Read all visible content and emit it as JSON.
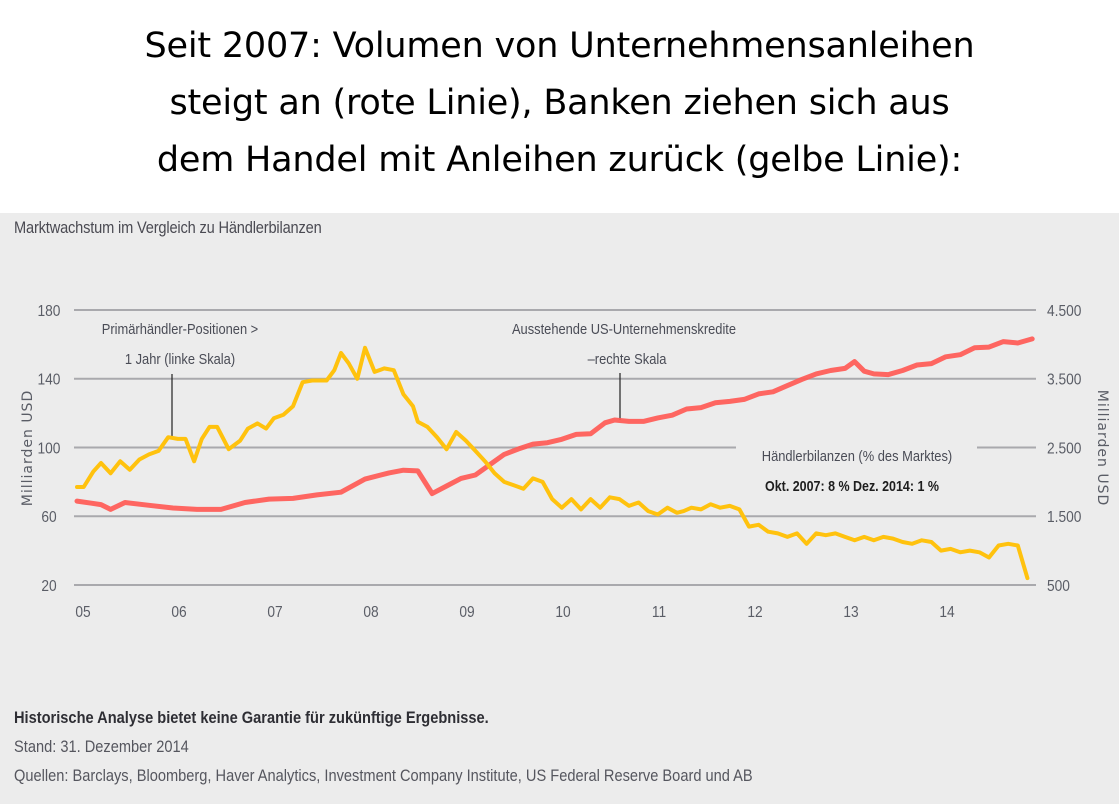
{
  "headline": {
    "lines": [
      "Seit 2007: Volumen von Unternehmensanleihen",
      "steigt an (rote Linie), Banken ziehen sich aus",
      "dem Handel mit Anleihen zurück (gelbe Linie):"
    ]
  },
  "footer": {
    "disclaimer": "Historische Analyse bietet keine Garantie für zukünftige Ergebnisse.",
    "date": "Stand: 31. Dezember 2014",
    "sources": "Quellen: Barclays, Bloomberg, Haver Analytics, Investment Company Institute, US Federal Reserve Board und AB"
  },
  "chart_data": {
    "type": "line",
    "title": "Marktwachstum im Vergleich zu Händlerbilanzen",
    "xlabel": "",
    "ylabel": "Milliarden USD",
    "ylabel_right": "Milliarden USD",
    "xlim": [
      2005,
      2015
    ],
    "ylim": [
      20,
      180
    ],
    "ylim_right": [
      500,
      4500
    ],
    "grid": true,
    "x_ticks": [
      "05",
      "06",
      "07",
      "08",
      "09",
      "10",
      "11",
      "12",
      "13",
      "14"
    ],
    "y_ticks": [
      "180",
      "140",
      "100",
      "60",
      "20"
    ],
    "y_ticks_values": [
      180,
      140,
      100,
      60,
      20
    ],
    "y_ticks_right": [
      "4.500",
      "3.500",
      "2.500",
      "1.500",
      "500"
    ],
    "y_ticks_right_values": [
      4500,
      3500,
      2500,
      1500,
      500
    ],
    "annotations": {
      "yellow_label_line1": "Primärhändler-Positionen >",
      "yellow_label_line2": "1 Jahr (linke Skala)",
      "red_label_line1": "Ausstehende US-Unternehmenskredite",
      "red_label_line2": "–rechte Skala",
      "dealer_label": "Händlerbilanzen (% des Marktes)",
      "dealer_values": "Okt. 2007: 8 % Dez. 2014: 1 %"
    },
    "series": [
      {
        "name": "Primärhändler-Positionen > 1 Jahr (linke Skala)",
        "axis": "left",
        "color": "#FFC20E",
        "x": [
          2005.0,
          2005.07,
          2005.17,
          2005.25,
          2005.35,
          2005.45,
          2005.55,
          2005.65,
          2005.75,
          2005.85,
          2005.95,
          2006.05,
          2006.13,
          2006.22,
          2006.3,
          2006.38,
          2006.46,
          2006.58,
          2006.7,
          2006.78,
          2006.88,
          2006.97,
          2007.05,
          2007.15,
          2007.25,
          2007.35,
          2007.45,
          2007.55,
          2007.6,
          2007.68,
          2007.75,
          2007.83,
          2007.92,
          2008.0,
          2008.1,
          2008.2,
          2008.3,
          2008.4,
          2008.5,
          2008.55,
          2008.65,
          2008.75,
          2008.85,
          2008.95,
          2009.05,
          2009.15,
          2009.25,
          2009.35,
          2009.45,
          2009.55,
          2009.65,
          2009.75,
          2009.85,
          2009.95,
          2010.05,
          2010.15,
          2010.25,
          2010.35,
          2010.45,
          2010.55,
          2010.65,
          2010.75,
          2010.85,
          2010.95,
          2011.05,
          2011.15,
          2011.25,
          2011.32,
          2011.4,
          2011.5,
          2011.6,
          2011.7,
          2011.8,
          2011.9,
          2012.0,
          2012.1,
          2012.2,
          2012.3,
          2012.4,
          2012.5,
          2012.6,
          2012.7,
          2012.8,
          2012.9,
          2013.0,
          2013.1,
          2013.2,
          2013.3,
          2013.4,
          2013.5,
          2013.6,
          2013.7,
          2013.8,
          2013.9,
          2014.0,
          2014.1,
          2014.2,
          2014.3,
          2014.4,
          2014.5,
          2014.6,
          2014.7,
          2014.8,
          2014.9
        ],
        "values": [
          77,
          77,
          86,
          91,
          85,
          92,
          87,
          93,
          96,
          98,
          106,
          105,
          105,
          92,
          105,
          112,
          112,
          99,
          104,
          111,
          114,
          111,
          117,
          119,
          124,
          138,
          139,
          139,
          139,
          145,
          155,
          149,
          140,
          158,
          144,
          146,
          145,
          131,
          124,
          115,
          112,
          106,
          99,
          109,
          104,
          98,
          92,
          85,
          80,
          78,
          76,
          82,
          80,
          70,
          65,
          70,
          64,
          70,
          65,
          71,
          70,
          66,
          68,
          63,
          61,
          65,
          62,
          63,
          65,
          64,
          67,
          65,
          66,
          64,
          54,
          55,
          51,
          50,
          48,
          50,
          44,
          50,
          49,
          50,
          48,
          46,
          48,
          46,
          48,
          47,
          45,
          44,
          46,
          45,
          40,
          41,
          39,
          40,
          39,
          36,
          43,
          44,
          43,
          24
        ],
        "values_note": "approximate, read from chart"
      },
      {
        "name": "Ausstehende US-Unternehmenskredite (rechte Skala)",
        "axis": "right",
        "color": "#FF5A55",
        "x": [
          2005.0,
          2005.15,
          2005.25,
          2005.35,
          2005.5,
          2005.75,
          2006.0,
          2006.25,
          2006.5,
          2006.75,
          2007.0,
          2007.25,
          2007.5,
          2007.75,
          2008.0,
          2008.25,
          2008.4,
          2008.55,
          2008.7,
          2008.85,
          2009.0,
          2009.15,
          2009.3,
          2009.45,
          2009.6,
          2009.75,
          2009.9,
          2010.05,
          2010.2,
          2010.35,
          2010.5,
          2010.6,
          2010.75,
          2010.9,
          2011.05,
          2011.2,
          2011.35,
          2011.5,
          2011.65,
          2011.8,
          2011.95,
          2012.1,
          2012.25,
          2012.4,
          2012.55,
          2012.7,
          2012.85,
          2013.0,
          2013.1,
          2013.2,
          2013.3,
          2013.45,
          2013.6,
          2013.75,
          2013.9,
          2014.05,
          2014.2,
          2014.35,
          2014.5,
          2014.65,
          2014.8,
          2014.95
        ],
        "values": [
          1720,
          1690,
          1670,
          1600,
          1700,
          1660,
          1620,
          1600,
          1600,
          1700,
          1750,
          1760,
          1810,
          1850,
          2040,
          2130,
          2170,
          2160,
          1830,
          1940,
          2050,
          2100,
          2250,
          2400,
          2480,
          2550,
          2570,
          2620,
          2690,
          2700,
          2860,
          2900,
          2880,
          2880,
          2930,
          2970,
          3060,
          3080,
          3150,
          3170,
          3200,
          3280,
          3310,
          3400,
          3490,
          3570,
          3620,
          3650,
          3750,
          3610,
          3570,
          3560,
          3620,
          3700,
          3720,
          3820,
          3850,
          3950,
          3960,
          4040,
          4020,
          4080
        ],
        "values_note": "approximate, read from chart"
      }
    ]
  }
}
